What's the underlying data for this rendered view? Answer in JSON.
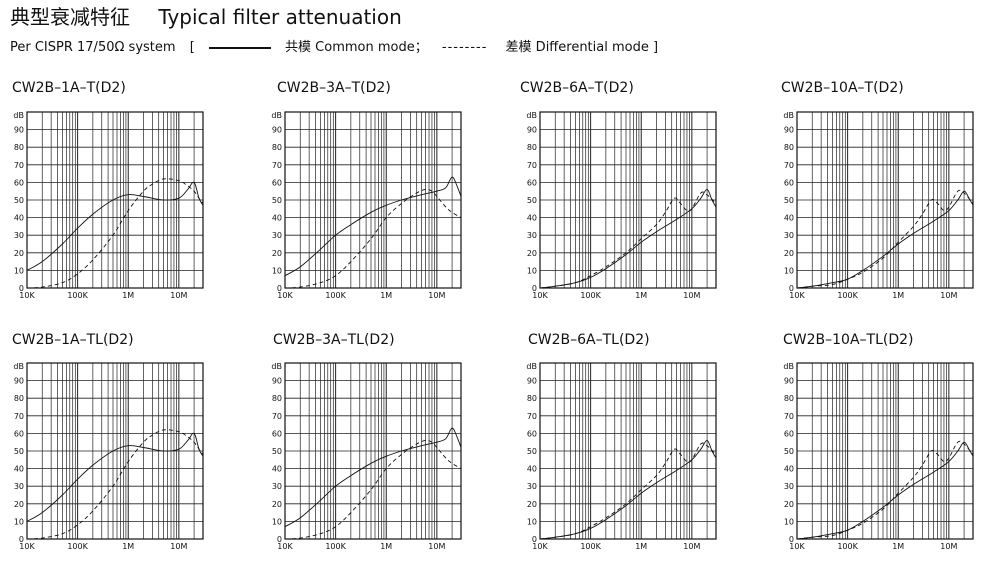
{
  "header": {
    "title_cn": "典型衰减特征",
    "title_en": "Typical filter attenuation",
    "legend": {
      "prefix": "Per CISPR 17/50Ω  system",
      "open_bracket": "[",
      "common": "共模  Common mode；",
      "dashes": "--------",
      "differential": "差模  Differential mode ]"
    }
  },
  "chart_data": [
    {
      "type": "line",
      "title": "CW2B–1A–T(D2)",
      "ylabel": "dB",
      "xscale": "log",
      "xlim": [
        10000,
        30000000
      ],
      "ylim": [
        0,
        100
      ],
      "yticks": [
        "0",
        "10",
        "20",
        "30",
        "40",
        "50",
        "60",
        "70",
        "80",
        "90"
      ],
      "xticks": [
        "10K",
        "100K",
        "1M",
        "10M"
      ],
      "series": [
        {
          "name": "Common mode",
          "style": "solid",
          "x": [
            10000,
            20000,
            50000,
            100000,
            200000,
            500000,
            1000000,
            2000000,
            5000000,
            10000000,
            15000000,
            20000000,
            25000000,
            30000000
          ],
          "y": [
            10,
            15,
            25,
            34,
            42,
            50,
            53,
            52,
            50,
            51,
            56,
            60,
            51,
            47
          ]
        },
        {
          "name": "Differential mode",
          "style": "dashed",
          "x": [
            10000,
            20000,
            50000,
            100000,
            200000,
            500000,
            1000000,
            2000000,
            3000000,
            5000000,
            10000000,
            15000000,
            20000000,
            25000000,
            30000000
          ],
          "y": [
            0,
            0.5,
            3,
            8,
            16,
            30,
            44,
            55,
            59,
            62,
            61,
            58,
            55,
            51,
            48
          ]
        }
      ]
    },
    {
      "type": "line",
      "title": "CW2B–3A–T(D2)",
      "ylabel": "dB",
      "xscale": "log",
      "xlim": [
        10000,
        30000000
      ],
      "ylim": [
        0,
        100
      ],
      "yticks": [
        "0",
        "10",
        "20",
        "30",
        "40",
        "50",
        "60",
        "70",
        "80",
        "90"
      ],
      "xticks": [
        "10K",
        "100K",
        "1M",
        "10M"
      ],
      "series": [
        {
          "name": "Common mode",
          "style": "solid",
          "x": [
            10000,
            20000,
            50000,
            100000,
            200000,
            500000,
            1000000,
            2000000,
            5000000,
            10000000,
            15000000,
            20000000,
            25000000,
            30000000
          ],
          "y": [
            7,
            12,
            22,
            30,
            36,
            43,
            47,
            50,
            53,
            55,
            57,
            63,
            58,
            52
          ]
        },
        {
          "name": "Differential mode",
          "style": "dashed",
          "x": [
            10000,
            20000,
            50000,
            100000,
            200000,
            500000,
            1000000,
            2000000,
            4000000,
            6000000,
            8000000,
            10000000,
            15000000,
            20000000,
            30000000
          ],
          "y": [
            0,
            0.5,
            3,
            7,
            15,
            28,
            40,
            48,
            54,
            56,
            55,
            52,
            46,
            43,
            40
          ]
        }
      ]
    },
    {
      "type": "line",
      "title": "CW2B–6A–T(D2)",
      "ylabel": "dB",
      "xscale": "log",
      "xlim": [
        10000,
        30000000
      ],
      "ylim": [
        0,
        100
      ],
      "yticks": [
        "0",
        "10",
        "20",
        "30",
        "40",
        "50",
        "60",
        "70",
        "80",
        "90"
      ],
      "xticks": [
        "10K",
        "100K",
        "1M",
        "10M"
      ],
      "series": [
        {
          "name": "Common mode",
          "style": "solid",
          "x": [
            10000,
            20000,
            50000,
            100000,
            200000,
            500000,
            1000000,
            2000000,
            5000000,
            10000000,
            15000000,
            20000000,
            25000000,
            30000000
          ],
          "y": [
            0,
            1,
            3,
            6,
            11,
            19,
            26,
            32,
            39,
            45,
            51,
            56,
            50,
            46
          ]
        },
        {
          "name": "Differential mode",
          "style": "dashed",
          "x": [
            10000,
            20000,
            50000,
            100000,
            200000,
            500000,
            1000000,
            2000000,
            3000000,
            4500000,
            6000000,
            8000000,
            10000000,
            15000000,
            20000000,
            30000000
          ],
          "y": [
            0,
            1,
            3,
            7,
            12,
            20,
            28,
            36,
            43,
            51,
            48,
            44,
            45,
            54,
            53,
            48
          ]
        }
      ]
    },
    {
      "type": "line",
      "title": "CW2B–10A–T(D2)",
      "ylabel": "dB",
      "xscale": "log",
      "xlim": [
        10000,
        30000000
      ],
      "ylim": [
        0,
        100
      ],
      "yticks": [
        "0",
        "10",
        "20",
        "30",
        "40",
        "50",
        "60",
        "70",
        "80",
        "90"
      ],
      "xticks": [
        "10K",
        "100K",
        "1M",
        "10M"
      ],
      "series": [
        {
          "name": "Common mode",
          "style": "solid",
          "x": [
            10000,
            20000,
            50000,
            100000,
            200000,
            500000,
            1000000,
            2000000,
            5000000,
            10000000,
            15000000,
            20000000,
            25000000,
            30000000
          ],
          "y": [
            0,
            1,
            3,
            5,
            10,
            18,
            25,
            31,
            38,
            44,
            50,
            55,
            51,
            47
          ]
        },
        {
          "name": "Differential mode",
          "style": "dashed",
          "x": [
            10000,
            20000,
            50000,
            100000,
            200000,
            500000,
            1000000,
            2000000,
            3000000,
            4500000,
            6000000,
            8000000,
            10000000,
            15000000,
            20000000,
            30000000
          ],
          "y": [
            0,
            1,
            2,
            5,
            9,
            17,
            26,
            35,
            42,
            50,
            48,
            44,
            46,
            55,
            54,
            48
          ]
        }
      ]
    },
    {
      "type": "line",
      "title": "CW2B–1A–TL(D2)",
      "ylabel": "dB",
      "xscale": "log",
      "xlim": [
        10000,
        30000000
      ],
      "ylim": [
        0,
        100
      ],
      "yticks": [
        "0",
        "10",
        "20",
        "30",
        "40",
        "50",
        "60",
        "70",
        "80",
        "90"
      ],
      "xticks": [
        "10K",
        "100K",
        "1M",
        "10M"
      ],
      "series": [
        {
          "name": "Common mode",
          "style": "solid",
          "x": [
            10000,
            20000,
            50000,
            100000,
            200000,
            500000,
            1000000,
            2000000,
            5000000,
            10000000,
            15000000,
            20000000,
            25000000,
            30000000
          ],
          "y": [
            10,
            15,
            25,
            34,
            42,
            50,
            53,
            52,
            50,
            51,
            56,
            60,
            51,
            47
          ]
        },
        {
          "name": "Differential mode",
          "style": "dashed",
          "x": [
            10000,
            20000,
            50000,
            100000,
            200000,
            500000,
            1000000,
            2000000,
            3000000,
            5000000,
            10000000,
            15000000,
            20000000,
            25000000,
            30000000
          ],
          "y": [
            0,
            0.5,
            3,
            8,
            16,
            30,
            44,
            55,
            59,
            62,
            61,
            58,
            55,
            51,
            48
          ]
        }
      ]
    },
    {
      "type": "line",
      "title": "CW2B–3A–TL(D2)",
      "ylabel": "dB",
      "xscale": "log",
      "xlim": [
        10000,
        30000000
      ],
      "ylim": [
        0,
        100
      ],
      "yticks": [
        "0",
        "10",
        "20",
        "30",
        "40",
        "50",
        "60",
        "70",
        "80",
        "90"
      ],
      "xticks": [
        "10K",
        "100K",
        "1M",
        "10M"
      ],
      "series": [
        {
          "name": "Common mode",
          "style": "solid",
          "x": [
            10000,
            20000,
            50000,
            100000,
            200000,
            500000,
            1000000,
            2000000,
            5000000,
            10000000,
            15000000,
            20000000,
            25000000,
            30000000
          ],
          "y": [
            7,
            12,
            22,
            30,
            36,
            43,
            47,
            50,
            53,
            55,
            57,
            63,
            58,
            52
          ]
        },
        {
          "name": "Differential mode",
          "style": "dashed",
          "x": [
            10000,
            20000,
            50000,
            100000,
            200000,
            500000,
            1000000,
            2000000,
            4000000,
            6000000,
            8000000,
            10000000,
            15000000,
            20000000,
            30000000
          ],
          "y": [
            0,
            0.5,
            3,
            7,
            15,
            28,
            40,
            48,
            54,
            56,
            55,
            52,
            46,
            43,
            40
          ]
        }
      ]
    },
    {
      "type": "line",
      "title": "CW2B–6A–TL(D2)",
      "ylabel": "dB",
      "xscale": "log",
      "xlim": [
        10000,
        30000000
      ],
      "ylim": [
        0,
        100
      ],
      "yticks": [
        "0",
        "10",
        "20",
        "30",
        "40",
        "50",
        "60",
        "70",
        "80",
        "90"
      ],
      "xticks": [
        "10K",
        "100K",
        "1M",
        "10M"
      ],
      "series": [
        {
          "name": "Common mode",
          "style": "solid",
          "x": [
            10000,
            20000,
            50000,
            100000,
            200000,
            500000,
            1000000,
            2000000,
            5000000,
            10000000,
            15000000,
            20000000,
            25000000,
            30000000
          ],
          "y": [
            0,
            1,
            3,
            6,
            11,
            19,
            26,
            32,
            39,
            45,
            51,
            56,
            50,
            46
          ]
        },
        {
          "name": "Differential mode",
          "style": "dashed",
          "x": [
            10000,
            20000,
            50000,
            100000,
            200000,
            500000,
            1000000,
            2000000,
            3000000,
            4500000,
            6000000,
            8000000,
            10000000,
            15000000,
            20000000,
            30000000
          ],
          "y": [
            0,
            1,
            3,
            7,
            12,
            20,
            28,
            36,
            43,
            51,
            48,
            44,
            45,
            54,
            53,
            48
          ]
        }
      ]
    },
    {
      "type": "line",
      "title": "CW2B–10A–TL(D2)",
      "ylabel": "dB",
      "xscale": "log",
      "xlim": [
        10000,
        30000000
      ],
      "ylim": [
        0,
        100
      ],
      "yticks": [
        "0",
        "10",
        "20",
        "30",
        "40",
        "50",
        "60",
        "70",
        "80",
        "90"
      ],
      "xticks": [
        "10K",
        "100K",
        "1M",
        "10M"
      ],
      "series": [
        {
          "name": "Common mode",
          "style": "solid",
          "x": [
            10000,
            20000,
            50000,
            100000,
            200000,
            500000,
            1000000,
            2000000,
            5000000,
            10000000,
            15000000,
            20000000,
            25000000,
            30000000
          ],
          "y": [
            0,
            1,
            3,
            5,
            10,
            18,
            25,
            31,
            38,
            44,
            50,
            55,
            51,
            47
          ]
        },
        {
          "name": "Differential mode",
          "style": "dashed",
          "x": [
            10000,
            20000,
            50000,
            100000,
            200000,
            500000,
            1000000,
            2000000,
            3000000,
            4500000,
            6000000,
            8000000,
            10000000,
            15000000,
            20000000,
            30000000
          ],
          "y": [
            0,
            1,
            2,
            5,
            9,
            17,
            26,
            35,
            42,
            50,
            48,
            44,
            46,
            55,
            54,
            48
          ]
        }
      ]
    }
  ]
}
